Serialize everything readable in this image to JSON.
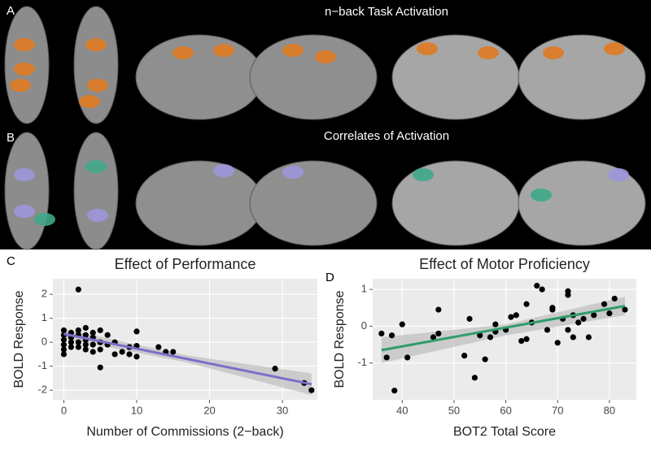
{
  "panel_labels": [
    "A",
    "B",
    "C",
    "D"
  ],
  "headers": [
    "n−back Task Activation",
    "Correlates of Activation"
  ],
  "chart_data": [
    {
      "type": "scatter",
      "title": "Effect of Performance",
      "x_label": "Number of Commissions (2−back)",
      "y_label": "BOLD Response",
      "x": [
        0,
        0,
        0,
        0,
        0,
        0,
        1,
        1,
        1,
        1,
        2,
        2,
        2,
        2,
        2,
        3,
        3,
        3,
        3,
        3,
        4,
        4,
        4,
        4,
        5,
        5,
        5,
        5,
        6,
        6,
        7,
        7,
        8,
        9,
        9,
        10,
        10,
        10,
        13,
        14,
        15,
        29,
        33,
        34
      ],
      "values": [
        0.5,
        0.3,
        0.1,
        -0.1,
        -0.3,
        -0.5,
        0.4,
        0.2,
        0,
        -0.2,
        2.2,
        0.5,
        0.3,
        0,
        -0.2,
        0.6,
        0.3,
        0.1,
        -0.1,
        -0.3,
        0.4,
        0.2,
        -0.1,
        -0.4,
        0.5,
        0,
        -0.3,
        -1.05,
        0.3,
        -0.1,
        0,
        -0.5,
        -0.4,
        -0.5,
        -0.2,
        0.45,
        -0.15,
        -0.6,
        -0.2,
        -0.4,
        -0.4,
        -1.1,
        -1.7,
        -2.0
      ],
      "color": "#000000",
      "trend": {
        "x": [
          0,
          34
        ],
        "values": [
          0.35,
          -1.75
        ],
        "color": "#7b6fc9"
      },
      "band": {
        "x": [
          0,
          17,
          34
        ],
        "lower": [
          0.15,
          -0.85,
          -2.2
        ],
        "upper": [
          0.55,
          -0.55,
          -1.3
        ],
        "color": "#bdbdbd"
      },
      "xlim": [
        -1.5,
        34.8
      ],
      "ylim": [
        -2.4,
        2.65
      ],
      "xticks": [
        0,
        10,
        20,
        30
      ],
      "yticks": [
        -2,
        -1,
        0,
        1,
        2
      ],
      "grid": true
    },
    {
      "type": "scatter",
      "title": "Effect of Motor Proficiency",
      "x_label": "BOT2 Total Score",
      "y_label": "BOLD Response",
      "x": [
        36,
        37,
        38,
        38.5,
        40,
        41,
        46,
        47,
        47,
        52,
        53,
        54,
        55,
        56,
        57,
        58,
        58,
        60,
        61,
        62,
        63,
        64,
        64,
        65,
        66,
        67,
        68,
        69,
        69,
        70,
        71,
        72,
        72,
        72,
        73,
        73,
        74,
        75,
        76,
        77,
        79,
        80,
        81,
        83
      ],
      "values": [
        -0.2,
        -0.85,
        -0.25,
        -1.75,
        0.05,
        -0.85,
        -0.3,
        0.45,
        -0.2,
        -0.8,
        0.2,
        -1.4,
        -0.25,
        -0.9,
        -0.3,
        -0.15,
        0.05,
        -0.1,
        0.25,
        0.3,
        -0.4,
        0.6,
        -0.35,
        0.1,
        1.1,
        1.0,
        -0.1,
        0.5,
        0.45,
        -0.45,
        0.2,
        0.95,
        0.85,
        -0.1,
        -0.3,
        0.3,
        0.1,
        0.2,
        -0.3,
        0.3,
        0.6,
        0.35,
        0.75,
        0.45
      ],
      "color": "#000000",
      "trend": {
        "x": [
          36,
          83
        ],
        "values": [
          -0.65,
          0.55
        ],
        "color": "#2e9c6a"
      },
      "band": {
        "x": [
          36,
          60,
          83
        ],
        "lower": [
          -1.0,
          -0.25,
          0.3
        ],
        "upper": [
          -0.3,
          0.05,
          0.8
        ],
        "color": "#bdbdbd"
      },
      "xlim": [
        34.3,
        85.2
      ],
      "ylim": [
        -2.0,
        1.29
      ],
      "xticks": [
        40,
        50,
        60,
        70,
        80
      ],
      "yticks": [
        -1,
        0,
        1
      ],
      "grid": true
    }
  ]
}
